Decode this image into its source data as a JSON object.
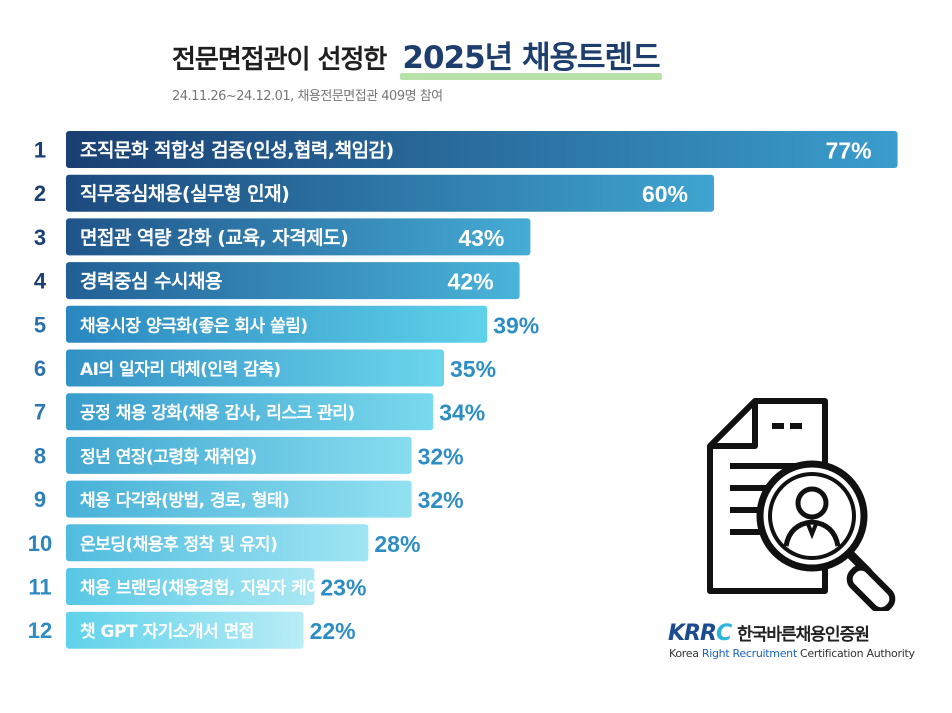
{
  "title": {
    "main": "전문면접관이 선정한",
    "highlight": "2025년 채용트렌드"
  },
  "subtitle": "24.11.26~24.12.01, 채용전문면접관 409명 참여",
  "chart_data": {
    "type": "bar",
    "orientation": "horizontal",
    "title": "전문면접관이 선정한 2025년 채용트렌드",
    "subtitle": "24.11.26~24.12.01, 채용전문면접관 409명 참여",
    "xlim": [
      0,
      100
    ],
    "unit": "%",
    "ranks": [
      "1",
      "2",
      "3",
      "4",
      "5",
      "6",
      "7",
      "8",
      "9",
      "10",
      "11",
      "12"
    ],
    "categories": [
      "조직문화 적합성 검증(인성,협력,책임감)",
      "직무중심채용(실무형 인재)",
      "면접관 역량 강화 (교육, 자격제도)",
      "경력중심 수시채용",
      "채용시장 양극화(좋은 회사 쏠림)",
      "AI의 일자리 대체(인력 감축)",
      "공정 채용 강화(채용 감사, 리스크 관리)",
      "정년 연장(고령화 재취업)",
      "채용 다각화(방법, 경로, 형태)",
      "온보딩(채용후 정착 및 유지)",
      "채용 브랜딩(채용경험, 지원자 케어)",
      "챗 GPT 자기소개서 면접"
    ],
    "values": [
      77,
      60,
      43,
      42,
      39,
      35,
      34,
      32,
      32,
      28,
      23,
      22
    ],
    "labels": [
      "77%",
      "60%",
      "43%",
      "42%",
      "39%",
      "35%",
      "34%",
      "32%",
      "32%",
      "28%",
      "23%",
      "22%"
    ]
  },
  "logo": {
    "mark_main": "KRR",
    "mark_c": "C",
    "korean": "한국바른채용인증원",
    "en_pre": "Korea ",
    "en_acc": "Right Recruitment",
    "en_post": " Certification Authority"
  },
  "colors": {
    "dark": "#1a3f72",
    "mid": "#2a86bf",
    "light": "#5fd2ea",
    "pale": "#b9ecf6",
    "numLight": "#2d8ec4"
  }
}
